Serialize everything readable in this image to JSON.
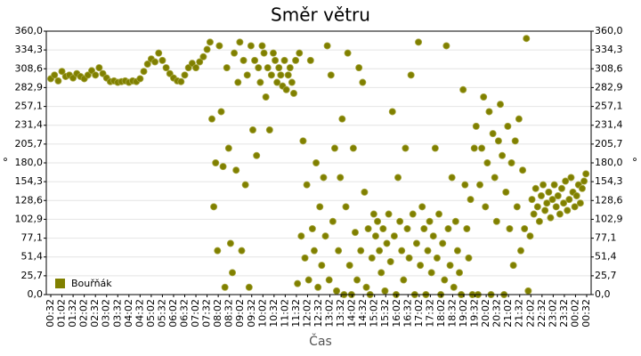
{
  "chart_data": {
    "type": "scatter",
    "title": "Směr větru",
    "x_label": "Čas",
    "y_label": "°",
    "legend": "lower left",
    "grid": true,
    "xlim": [
      20,
      1484
    ],
    "xticks": [
      {
        "value": 32,
        "label": "00:32"
      },
      {
        "value": 62,
        "label": "01:02"
      },
      {
        "value": 92,
        "label": "01:32"
      },
      {
        "value": 122,
        "label": "02:02"
      },
      {
        "value": 152,
        "label": "02:32"
      },
      {
        "value": 182,
        "label": "03:02"
      },
      {
        "value": 212,
        "label": "03:32"
      },
      {
        "value": 242,
        "label": "04:02"
      },
      {
        "value": 272,
        "label": "04:32"
      },
      {
        "value": 302,
        "label": "05:02"
      },
      {
        "value": 332,
        "label": "05:32"
      },
      {
        "value": 362,
        "label": "06:02"
      },
      {
        "value": 392,
        "label": "06:32"
      },
      {
        "value": 422,
        "label": "07:02"
      },
      {
        "value": 452,
        "label": "07:32"
      },
      {
        "value": 482,
        "label": "08:02"
      },
      {
        "value": 512,
        "label": "08:32"
      },
      {
        "value": 542,
        "label": "09:02"
      },
      {
        "value": 572,
        "label": "09:32"
      },
      {
        "value": 602,
        "label": "10:02"
      },
      {
        "value": 632,
        "label": "10:32"
      },
      {
        "value": 662,
        "label": "11:02"
      },
      {
        "value": 692,
        "label": "11:32"
      },
      {
        "value": 722,
        "label": "12:02"
      },
      {
        "value": 752,
        "label": "12:32"
      },
      {
        "value": 782,
        "label": "13:02"
      },
      {
        "value": 812,
        "label": "13:32"
      },
      {
        "value": 842,
        "label": "14:02"
      },
      {
        "value": 872,
        "label": "14:32"
      },
      {
        "value": 902,
        "label": "15:02"
      },
      {
        "value": 932,
        "label": "15:32"
      },
      {
        "value": 962,
        "label": "16:02"
      },
      {
        "value": 992,
        "label": "16:32"
      },
      {
        "value": 1022,
        "label": "17:02"
      },
      {
        "value": 1052,
        "label": "17:32"
      },
      {
        "value": 1082,
        "label": "18:02"
      },
      {
        "value": 1112,
        "label": "18:32"
      },
      {
        "value": 1142,
        "label": "19:02"
      },
      {
        "value": 1172,
        "label": "19:32"
      },
      {
        "value": 1202,
        "label": "20:02"
      },
      {
        "value": 1232,
        "label": "20:32"
      },
      {
        "value": 1262,
        "label": "21:02"
      },
      {
        "value": 1292,
        "label": "21:32"
      },
      {
        "value": 1322,
        "label": "22:02"
      },
      {
        "value": 1352,
        "label": "22:32"
      },
      {
        "value": 1382,
        "label": "23:02"
      },
      {
        "value": 1412,
        "label": "23:32"
      },
      {
        "value": 1442,
        "label": "00:02"
      },
      {
        "value": 1472,
        "label": "00:32"
      }
    ],
    "ylim": [
      0,
      360
    ],
    "yticks": [
      {
        "value": 0,
        "label": "0,0"
      },
      {
        "value": 25.7,
        "label": "25,7"
      },
      {
        "value": 51.4,
        "label": "51,4"
      },
      {
        "value": 77.1,
        "label": "77,1"
      },
      {
        "value": 102.9,
        "label": "102,9"
      },
      {
        "value": 128.6,
        "label": "128,6"
      },
      {
        "value": 154.3,
        "label": "154,3"
      },
      {
        "value": 180,
        "label": "180,0"
      },
      {
        "value": 205.7,
        "label": "205,7"
      },
      {
        "value": 231.4,
        "label": "231,4"
      },
      {
        "value": 257.1,
        "label": "257,1"
      },
      {
        "value": 282.9,
        "label": "282,9"
      },
      {
        "value": 308.6,
        "label": "308,6"
      },
      {
        "value": 334.3,
        "label": "334,3"
      },
      {
        "value": 360,
        "label": "360,0"
      }
    ],
    "x": [
      32,
      42,
      52,
      62,
      72,
      82,
      92,
      102,
      112,
      122,
      132,
      142,
      152,
      162,
      172,
      182,
      192,
      202,
      212,
      222,
      232,
      242,
      252,
      262,
      272,
      282,
      292,
      302,
      312,
      322,
      332,
      342,
      352,
      362,
      372,
      382,
      392,
      402,
      412,
      422,
      432,
      442,
      452,
      460,
      465,
      470,
      475,
      480,
      485,
      490,
      495,
      500,
      505,
      510,
      515,
      520,
      525,
      530,
      535,
      540,
      545,
      550,
      555,
      560,
      565,
      570,
      575,
      580,
      585,
      590,
      595,
      600,
      605,
      610,
      615,
      620,
      625,
      630,
      635,
      640,
      645,
      650,
      655,
      660,
      665,
      670,
      675,
      680,
      685,
      690,
      695,
      700,
      705,
      710,
      715,
      720,
      725,
      730,
      735,
      740,
      745,
      750,
      755,
      760,
      765,
      770,
      775,
      780,
      785,
      790,
      795,
      800,
      805,
      810,
      815,
      820,
      825,
      830,
      835,
      840,
      845,
      850,
      855,
      860,
      865,
      870,
      875,
      880,
      885,
      890,
      895,
      900,
      905,
      910,
      915,
      920,
      925,
      930,
      935,
      940,
      945,
      950,
      955,
      960,
      965,
      970,
      975,
      980,
      985,
      990,
      995,
      1000,
      1005,
      1010,
      1015,
      1020,
      1025,
      1030,
      1035,
      1040,
      1045,
      1050,
      1055,
      1060,
      1065,
      1070,
      1075,
      1080,
      1085,
      1090,
      1095,
      1100,
      1105,
      1110,
      1115,
      1120,
      1125,
      1130,
      1135,
      1140,
      1145,
      1150,
      1155,
      1160,
      1165,
      1170,
      1175,
      1180,
      1185,
      1190,
      1195,
      1200,
      1205,
      1210,
      1215,
      1220,
      1225,
      1230,
      1235,
      1240,
      1245,
      1250,
      1255,
      1260,
      1265,
      1270,
      1275,
      1280,
      1285,
      1290,
      1295,
      1300,
      1305,
      1310,
      1315,
      1320,
      1325,
      1330,
      1335,
      1340,
      1345,
      1350,
      1355,
      1360,
      1365,
      1370,
      1375,
      1380,
      1385,
      1390,
      1395,
      1400,
      1405,
      1410,
      1415,
      1420,
      1425,
      1430,
      1435,
      1440,
      1445,
      1450,
      1455,
      1460,
      1465,
      1470
    ],
    "series": [
      {
        "name": "Bouřňák",
        "color": "#808000",
        "values": [
          295,
          300,
          292,
          305,
          298,
          300,
          296,
          302,
          298,
          295,
          300,
          306,
          300,
          310,
          302,
          296,
          291,
          292,
          290,
          291,
          292,
          290,
          292,
          291,
          295,
          305,
          315,
          322,
          318,
          330,
          320,
          310,
          302,
          296,
          292,
          291,
          300,
          310,
          316,
          310,
          318,
          325,
          335,
          345,
          240,
          120,
          180,
          60,
          340,
          250,
          175,
          10,
          310,
          200,
          70,
          30,
          330,
          170,
          290,
          345,
          60,
          320,
          150,
          300,
          10,
          340,
          225,
          320,
          190,
          310,
          290,
          340,
          330,
          270,
          310,
          225,
          300,
          330,
          320,
          290,
          310,
          300,
          285,
          320,
          280,
          300,
          310,
          290,
          275,
          320,
          15,
          330,
          80,
          210,
          50,
          150,
          20,
          320,
          90,
          60,
          180,
          10,
          120,
          40,
          160,
          80,
          340,
          20,
          300,
          100,
          200,
          5,
          60,
          160,
          240,
          0,
          120,
          330,
          40,
          0,
          200,
          85,
          20,
          310,
          60,
          290,
          140,
          10,
          90,
          0,
          50,
          110,
          80,
          100,
          60,
          30,
          90,
          5,
          70,
          110,
          45,
          250,
          80,
          0,
          160,
          100,
          60,
          20,
          200,
          90,
          50,
          300,
          110,
          0,
          70,
          345,
          40,
          120,
          90,
          0,
          60,
          100,
          30,
          80,
          200,
          50,
          110,
          0,
          70,
          20,
          340,
          90,
          40,
          160,
          10,
          100,
          60,
          30,
          0,
          280,
          150,
          90,
          50,
          130,
          0,
          200,
          230,
          0,
          150,
          200,
          270,
          120,
          180,
          250,
          0,
          220,
          160,
          100,
          210,
          260,
          190,
          0,
          140,
          230,
          90,
          180,
          40,
          210,
          120,
          240,
          60,
          170,
          90,
          350,
          5,
          80,
          130,
          110,
          145,
          120,
          100,
          135,
          150,
          115,
          125,
          140,
          105,
          130,
          150,
          120,
          135,
          110,
          145,
          125,
          155,
          115,
          130,
          160,
          140,
          120,
          135,
          150,
          125,
          145,
          155,
          165
        ]
      }
    ]
  }
}
